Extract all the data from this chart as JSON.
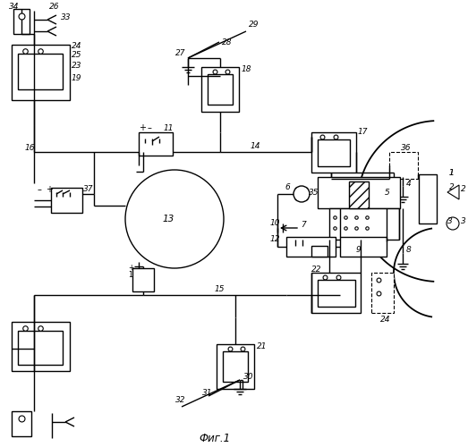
{
  "title": "Фиг.1",
  "bg_color": "#ffffff",
  "line_color": "#000000"
}
